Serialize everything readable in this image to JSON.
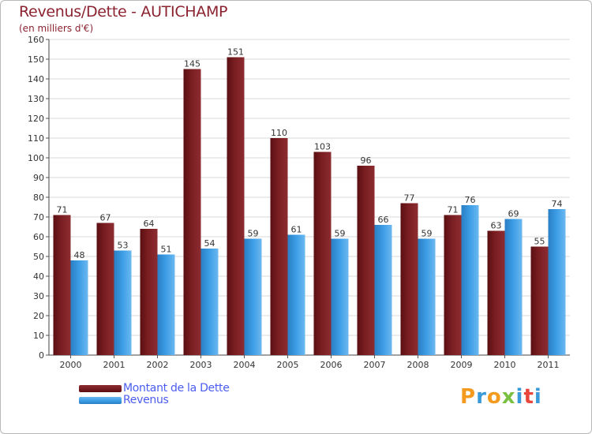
{
  "title": "Revenus/Dette - AUTICHAMP",
  "subtitle": "(en milliers d'€)",
  "brand": {
    "letters": [
      "P",
      "r",
      "o",
      "x",
      "i",
      "t",
      "i"
    ],
    "colors": [
      "#f39a1f",
      "#3a9ad9",
      "#f39a1f",
      "#7ac143",
      "#3a9ad9",
      "#e8463a",
      "#3a9ad9"
    ]
  },
  "colors": {
    "dette": "#7a1e22",
    "revenus": "#3d9ee6",
    "axis_text": "#333333",
    "grid": "#d9d9d9"
  },
  "chart_data": {
    "type": "bar",
    "title": "Revenus/Dette - AUTICHAMP",
    "ylabel": "(en milliers d'€)",
    "xlabel": "",
    "categories": [
      "2000",
      "2001",
      "2002",
      "2003",
      "2004",
      "2005",
      "2006",
      "2007",
      "2008",
      "2009",
      "2010",
      "2011"
    ],
    "series": [
      {
        "name": "Montant de la Dette",
        "values": [
          71,
          67,
          64,
          145,
          151,
          110,
          103,
          96,
          77,
          71,
          63,
          55
        ]
      },
      {
        "name": "Revenus",
        "values": [
          48,
          53,
          51,
          54,
          59,
          61,
          59,
          66,
          59,
          76,
          69,
          74
        ]
      }
    ],
    "ylim": [
      0,
      160
    ],
    "yticks": [
      0,
      10,
      20,
      30,
      40,
      50,
      60,
      70,
      80,
      90,
      100,
      110,
      120,
      130,
      140,
      150,
      160
    ],
    "grid": true,
    "legend": "bottom-left"
  }
}
